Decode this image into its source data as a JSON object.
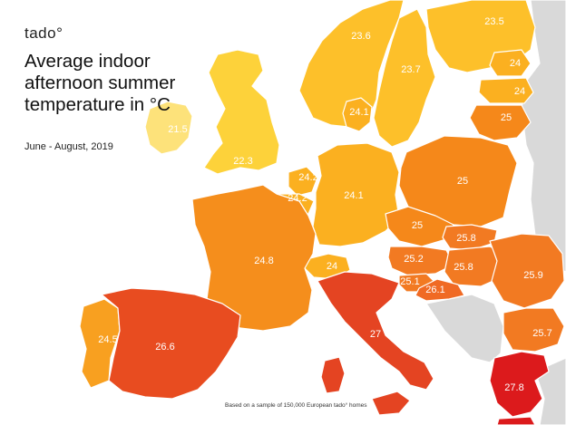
{
  "brand": "tado°",
  "title": "Average indoor afternoon summer temperature in °C",
  "subtitle": "June - August, 2019",
  "footnote": "Based on a sample of 150,000 European tado° homes",
  "colors": {
    "t21_5": "#fde27a",
    "t22_3": "#fdd23a",
    "t23_5": "#fdc02a",
    "t24": "#fbb020",
    "t24_5": "#f8a020",
    "t24_8": "#f58e1c",
    "t25": "#f5881a",
    "t25_5": "#f27a22",
    "t26": "#f06a24",
    "t26_6": "#e84c20",
    "t27": "#e44422",
    "t27_8": "#dc1a1c",
    "grey": "#d9d9d9"
  },
  "regions": [
    {
      "name": "ireland",
      "value": "21.5"
    },
    {
      "name": "uk",
      "value": "22.3"
    },
    {
      "name": "norway",
      "value": "23.6"
    },
    {
      "name": "sweden",
      "value": "23.7"
    },
    {
      "name": "finland",
      "value": "23.5"
    },
    {
      "name": "estonia",
      "value": "24"
    },
    {
      "name": "latvia",
      "value": "24"
    },
    {
      "name": "lithuania",
      "value": "25"
    },
    {
      "name": "denmark",
      "value": "24.1"
    },
    {
      "name": "netherlands",
      "value": "24.2"
    },
    {
      "name": "belgium",
      "value": "24.2"
    },
    {
      "name": "germany",
      "value": "24.1"
    },
    {
      "name": "poland",
      "value": "25"
    },
    {
      "name": "czechia",
      "value": "25"
    },
    {
      "name": "slovakia",
      "value": "25.8"
    },
    {
      "name": "austria",
      "value": "25.2"
    },
    {
      "name": "hungary",
      "value": "25.8"
    },
    {
      "name": "slovenia",
      "value": "25.1"
    },
    {
      "name": "croatia",
      "value": "26.1"
    },
    {
      "name": "switzerland",
      "value": "24"
    },
    {
      "name": "france",
      "value": "24.8"
    },
    {
      "name": "romania",
      "value": "25.9"
    },
    {
      "name": "bulgaria",
      "value": "25.7"
    },
    {
      "name": "portugal",
      "value": "24.5"
    },
    {
      "name": "spain",
      "value": "26.6"
    },
    {
      "name": "italy",
      "value": "27"
    },
    {
      "name": "greece",
      "value": "27.8"
    }
  ]
}
